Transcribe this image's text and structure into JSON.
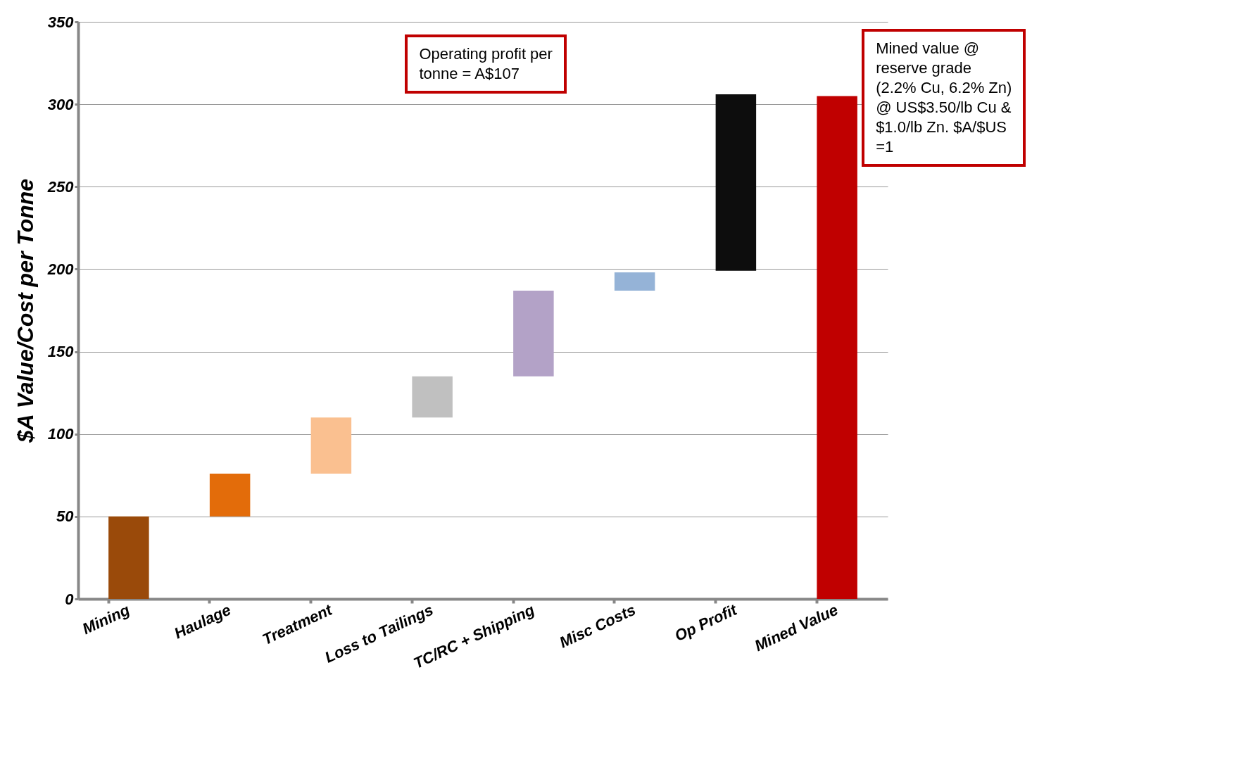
{
  "chart_data": {
    "type": "bar",
    "ylabel": "$A Value/Cost per Tonne",
    "categories": [
      "Mining",
      "Haulage",
      "Treatment",
      "Loss to Tailings",
      "TC/RC + Shipping",
      "Misc Costs",
      "Op Profit",
      "Mined Value"
    ],
    "base": [
      0,
      50,
      76,
      110,
      135,
      187,
      199,
      0
    ],
    "values": [
      50,
      26,
      34,
      25,
      52,
      11,
      107,
      305
    ],
    "colors": [
      "#9a4a0a",
      "#e36c0a",
      "#fac090",
      "#c0c0c0",
      "#b3a2c7",
      "#95b3d7",
      "#0d0d0d",
      "#c00000"
    ],
    "ylim": [
      0,
      350
    ],
    "yticks": [
      0,
      50,
      100,
      150,
      200,
      250,
      300,
      350
    ],
    "grid": "y",
    "annotations": [
      "Operating profit per\ntonne = A$107",
      "Mined value @\nreserve grade\n(2.2% Cu, 6.2% Zn)\n@ US$3.50/lb Cu &\n$1.0/lb Zn. $A/$US\n=1"
    ]
  }
}
